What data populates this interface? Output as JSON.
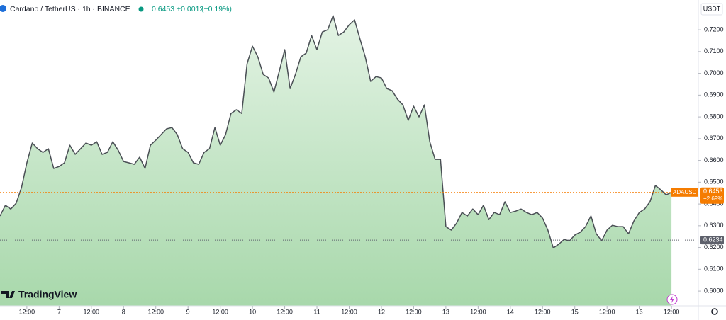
{
  "header": {
    "symbol": "Cardano / TetherUS · 1h · BINANCE",
    "price": "0.6453",
    "change": "+0.0012",
    "change_pct": "(+0.19%)"
  },
  "logo": "TradingView",
  "chart_data": {
    "type": "area",
    "currency": "USDT",
    "line_color": "#4a4f55",
    "fill_top": "#e3f3e4",
    "fill_bottom": "#a8d8ab",
    "values": [
      0.6345,
      0.6394,
      0.6377,
      0.6403,
      0.6475,
      0.6589,
      0.668,
      0.6654,
      0.6637,
      0.6654,
      0.6563,
      0.6572,
      0.6589,
      0.667,
      0.6628,
      0.6654,
      0.668,
      0.667,
      0.6686,
      0.6628,
      0.6637,
      0.6686,
      0.6647,
      0.6595,
      0.6589,
      0.6582,
      0.6615,
      0.6563,
      0.667,
      0.6693,
      0.6719,
      0.6745,
      0.6751,
      0.6719,
      0.6654,
      0.6637,
      0.6589,
      0.6582,
      0.6637,
      0.6654,
      0.6751,
      0.667,
      0.6719,
      0.6816,
      0.6833,
      0.6816,
      0.7044,
      0.7125,
      0.7076,
      0.6995,
      0.6979,
      0.6914,
      0.7011,
      0.7109,
      0.693,
      0.6995,
      0.7076,
      0.7093,
      0.7174,
      0.7109,
      0.719,
      0.72,
      0.7265,
      0.7174,
      0.719,
      0.7223,
      0.7246,
      0.7158,
      0.7076,
      0.6963,
      0.6985,
      0.6979,
      0.693,
      0.692,
      0.6881,
      0.6855,
      0.6784,
      0.6849,
      0.68,
      0.6855,
      0.6686,
      0.6605,
      0.6605,
      0.6296,
      0.628,
      0.6312,
      0.6361,
      0.6345,
      0.6377,
      0.6351,
      0.6394,
      0.6328,
      0.6361,
      0.6351,
      0.641,
      0.6361,
      0.6367,
      0.6377,
      0.6361,
      0.6351,
      0.6361,
      0.6335,
      0.628,
      0.6198,
      0.6215,
      0.6237,
      0.6231,
      0.6257,
      0.627,
      0.6296,
      0.6345,
      0.6263,
      0.6231,
      0.628,
      0.6302,
      0.6296,
      0.6296,
      0.6263,
      0.6322,
      0.6361,
      0.6377,
      0.641,
      0.6485,
      0.6465,
      0.6442,
      0.6453
    ],
    "xlim": [
      0,
      130
    ],
    "xticks": [
      {
        "value": 5,
        "label": "12:00"
      },
      {
        "value": 11,
        "label": "7"
      },
      {
        "value": 17,
        "label": "12:00"
      },
      {
        "value": 23,
        "label": "8"
      },
      {
        "value": 29,
        "label": "12:00"
      },
      {
        "value": 35,
        "label": "9"
      },
      {
        "value": 41,
        "label": "12:00"
      },
      {
        "value": 47,
        "label": "10"
      },
      {
        "value": 53,
        "label": "12:00"
      },
      {
        "value": 59,
        "label": "11"
      },
      {
        "value": 65,
        "label": "12:00"
      },
      {
        "value": 71,
        "label": "12"
      },
      {
        "value": 77,
        "label": "12:00"
      },
      {
        "value": 83,
        "label": "13"
      },
      {
        "value": 89,
        "label": "12:00"
      },
      {
        "value": 95,
        "label": "14"
      },
      {
        "value": 101,
        "label": "12:00"
      },
      {
        "value": 107,
        "label": "15"
      },
      {
        "value": 113,
        "label": "12:00"
      },
      {
        "value": 119,
        "label": "16"
      },
      {
        "value": 125,
        "label": "12:00"
      }
    ],
    "ylim": [
      0.5932,
      0.7337
    ],
    "yticks": [
      {
        "value": 0.6,
        "label": "0.6000"
      },
      {
        "value": 0.61,
        "label": "0.6100"
      },
      {
        "value": 0.62,
        "label": "0.6200"
      },
      {
        "value": 0.63,
        "label": "0.6300"
      },
      {
        "value": 0.64,
        "label": "0.6400"
      },
      {
        "value": 0.65,
        "label": "0.6500"
      },
      {
        "value": 0.66,
        "label": "0.6600"
      },
      {
        "value": 0.67,
        "label": "0.6700"
      },
      {
        "value": 0.68,
        "label": "0.6800"
      },
      {
        "value": 0.69,
        "label": "0.6900"
      },
      {
        "value": 0.7,
        "label": "0.7000"
      },
      {
        "value": 0.71,
        "label": "0.7100"
      },
      {
        "value": 0.72,
        "label": "0.7200"
      }
    ],
    "last_price": {
      "value": 0.6453,
      "label": "0.6453",
      "tag": "ADAUSDT",
      "change": "+2.69%",
      "color": "#f57c00"
    },
    "reference_price": {
      "value": 0.6234,
      "label": "0.6234",
      "color": "#5d606b"
    }
  }
}
